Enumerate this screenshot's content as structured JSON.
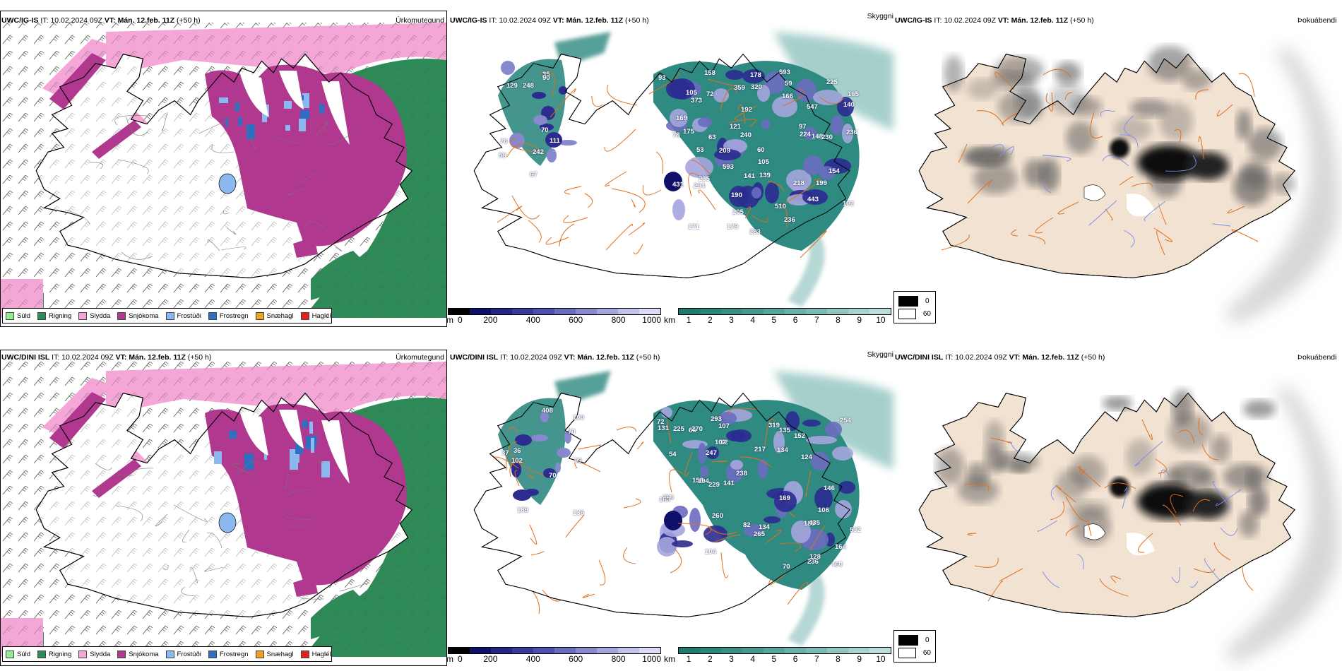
{
  "rows": [
    {
      "model": "UWC/IG-IS",
      "it_label": "IT:",
      "it_value": "10.02.2024 09Z",
      "vt_label": "VT:",
      "vt_value": "Mán. 12.feb. 11Z",
      "lead": "(+50 h)",
      "labels": [
        "111",
        "35",
        "67",
        "129",
        "90",
        "242",
        "70",
        "58",
        "76",
        "248",
        "53",
        "178",
        "97",
        "60",
        "105",
        "175",
        "72",
        "121",
        "154",
        "443",
        "283",
        "63",
        "190",
        "148",
        "59",
        "240",
        "236",
        "179",
        "158",
        "205",
        "224",
        "171",
        "593",
        "431",
        "105",
        "230",
        "547",
        "166",
        "235",
        "169",
        "225",
        "199",
        "192",
        "139",
        "102",
        "78",
        "140",
        "236",
        "359",
        "320",
        "294",
        "218",
        "141",
        "165",
        "209",
        "373",
        "593",
        "510",
        "93"
      ]
    },
    {
      "model": "UWC/DINI ISL",
      "it_label": "IT:",
      "it_value": "10.02.2024 09Z",
      "vt_label": "VT:",
      "vt_value": "Mán. 12.feb. 11Z",
      "lead": "(+50 h)",
      "labels": [
        "100",
        "189",
        "136",
        "102",
        "408",
        "36",
        "37",
        "99",
        "70",
        "70",
        "106",
        "70",
        "54",
        "82",
        "134",
        "164",
        "65",
        "134",
        "124",
        "72",
        "104",
        "460",
        "247",
        "236",
        "152",
        "260",
        "265",
        "217",
        "185",
        "435",
        "169",
        "532",
        "254",
        "238",
        "107",
        "102",
        "270",
        "225",
        "194",
        "293",
        "135",
        "131",
        "286",
        "229",
        "163",
        "128",
        "141",
        "319",
        "146",
        "158",
        "72"
      ]
    }
  ],
  "panel_titles": {
    "precip": "Úrkomutegund",
    "visibility": "Skyggni",
    "fog": "Þokuábendi"
  },
  "precip_legend": [
    {
      "label": "Súld",
      "color": "#90EE90"
    },
    {
      "label": "Rigning",
      "color": "#2E8B57"
    },
    {
      "label": "Slydda",
      "color": "#F4A6D7"
    },
    {
      "label": "Snjókoma",
      "color": "#B0388F"
    },
    {
      "label": "Frostúði",
      "color": "#8BB8F0"
    },
    {
      "label": "Frostregn",
      "color": "#2F6FC0"
    },
    {
      "label": "Snæhagl",
      "color": "#F0A020"
    },
    {
      "label": "Haglél",
      "color": "#E02020"
    }
  ],
  "ceiling_bar": {
    "unit": "m",
    "ticks": [
      "0",
      "200",
      "400",
      "600",
      "800",
      "1000"
    ],
    "colors": [
      "#000000",
      "#10106a",
      "#252585",
      "#3a3a9a",
      "#4f4fb0",
      "#6b6bc0",
      "#8888cf",
      "#a5a5dd",
      "#c2c2ea",
      "#dcdcf4"
    ]
  },
  "vis_bar": {
    "unit": "km",
    "ticks": [
      "1",
      "2",
      "3",
      "4",
      "5",
      "6",
      "7",
      "8",
      "9",
      "10"
    ],
    "colors": [
      "#1f7a72",
      "#2a847c",
      "#378f87",
      "#469a92",
      "#56a59d",
      "#68b0a9",
      "#7bbbb4",
      "#90c7c1",
      "#a6d3ce",
      "#bddfdb"
    ]
  },
  "fog_legend": [
    {
      "label": "0",
      "color": "#000000"
    },
    {
      "label": "60",
      "color": "#ffffff"
    }
  ],
  "colors": {
    "road": "#E07020",
    "river": "#7A8CF0",
    "land_fog": "#F2E2D2",
    "coast": "#000000"
  }
}
